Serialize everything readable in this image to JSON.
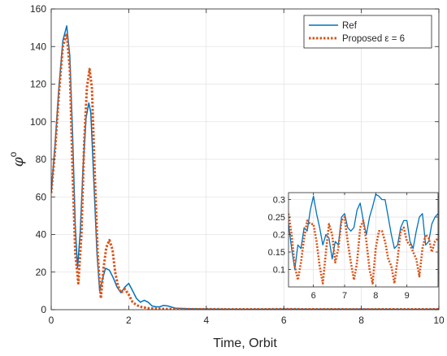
{
  "chart_data": [
    {
      "type": "line",
      "title": "",
      "xlabel": "Time, Orbit",
      "ylabel": "φ",
      "ylabel_superscript": "o",
      "xlim": [
        0,
        10
      ],
      "ylim": [
        0,
        160
      ],
      "xticks": [
        0,
        2,
        4,
        6,
        8,
        10
      ],
      "yticks": [
        0,
        20,
        40,
        60,
        80,
        100,
        120,
        140,
        160
      ],
      "grid": true,
      "legend": {
        "position": "top-right"
      },
      "series": [
        {
          "name": "Ref",
          "color": "#0072BD",
          "style": "solid",
          "x": [
            0,
            0.1,
            0.2,
            0.3,
            0.4,
            0.48,
            0.55,
            0.62,
            0.68,
            0.75,
            0.82,
            0.9,
            0.97,
            1.02,
            1.1,
            1.18,
            1.25,
            1.32,
            1.4,
            1.5,
            1.6,
            1.7,
            1.8,
            1.9,
            2.0,
            2.1,
            2.2,
            2.3,
            2.4,
            2.5,
            2.6,
            2.7,
            2.8,
            2.9,
            3.0,
            3.2,
            3.5,
            4.0,
            5.0,
            6.0,
            7.0,
            8.0,
            9.0,
            10.0
          ],
          "y": [
            62,
            88,
            118,
            143,
            151,
            135,
            95,
            45,
            22,
            42,
            75,
            102,
            110,
            105,
            68,
            30,
            10,
            16,
            22,
            21,
            17,
            12,
            9,
            12,
            14,
            10,
            6,
            4,
            5,
            4,
            2,
            1.5,
            1.5,
            2.3,
            2,
            0.8,
            0.5,
            0.3,
            0.2,
            0.3,
            0.25,
            0.3,
            0.22,
            0.25
          ]
        },
        {
          "name": "Proposed ε = 6",
          "color": "#D95319",
          "style": "dotted",
          "x": [
            0,
            0.1,
            0.2,
            0.3,
            0.4,
            0.48,
            0.55,
            0.62,
            0.7,
            0.78,
            0.85,
            0.92,
            0.99,
            1.05,
            1.12,
            1.2,
            1.28,
            1.35,
            1.42,
            1.5,
            1.58,
            1.65,
            1.72,
            1.8,
            1.9,
            2.0,
            2.1,
            2.2,
            2.3,
            2.5,
            2.7,
            3.0,
            3.5,
            4.0,
            5.0,
            6.0,
            7.0,
            8.0,
            9.0,
            10.0
          ],
          "y": [
            62,
            85,
            115,
            140,
            147,
            128,
            75,
            30,
            14,
            40,
            88,
            118,
            128,
            118,
            75,
            30,
            6,
            22,
            33,
            37,
            32,
            20,
            13,
            9,
            11,
            8,
            4,
            2.5,
            1.5,
            0.8,
            0.5,
            0.35,
            0.3,
            0.25,
            0.2,
            0.25,
            0.2,
            0.18,
            0.2,
            0.2
          ]
        }
      ]
    },
    {
      "type": "line",
      "title": "",
      "xlabel": "",
      "ylabel": "",
      "inset": true,
      "xlim": [
        5.2,
        10
      ],
      "ylim": [
        0.05,
        0.32
      ],
      "xticks": [
        6,
        7,
        8,
        9
      ],
      "yticks": [
        0.1,
        0.15,
        0.2,
        0.25,
        0.3
      ],
      "grid": true,
      "series": [
        {
          "name": "Ref",
          "color": "#0072BD",
          "style": "solid",
          "x": [
            5.2,
            5.3,
            5.4,
            5.5,
            5.6,
            5.7,
            5.8,
            5.9,
            6.0,
            6.1,
            6.2,
            6.3,
            6.4,
            6.5,
            6.6,
            6.7,
            6.8,
            6.9,
            7.0,
            7.1,
            7.2,
            7.3,
            7.4,
            7.5,
            7.6,
            7.7,
            7.8,
            7.9,
            8.0,
            8.1,
            8.2,
            8.3,
            8.4,
            8.5,
            8.6,
            8.7,
            8.8,
            8.9,
            9.0,
            9.1,
            9.2,
            9.3,
            9.4,
            9.5,
            9.6,
            9.7,
            9.8,
            9.9,
            10.0
          ],
          "y": [
            0.23,
            0.16,
            0.1,
            0.17,
            0.16,
            0.22,
            0.21,
            0.27,
            0.31,
            0.26,
            0.22,
            0.17,
            0.2,
            0.19,
            0.13,
            0.18,
            0.17,
            0.25,
            0.26,
            0.22,
            0.21,
            0.22,
            0.27,
            0.29,
            0.24,
            0.2,
            0.25,
            0.28,
            0.315,
            0.31,
            0.3,
            0.3,
            0.25,
            0.2,
            0.16,
            0.17,
            0.22,
            0.24,
            0.24,
            0.18,
            0.16,
            0.21,
            0.25,
            0.26,
            0.17,
            0.18,
            0.23,
            0.25,
            0.26
          ]
        },
        {
          "name": "Proposed ε = 6",
          "color": "#D95319",
          "style": "dotted",
          "x": [
            5.2,
            5.3,
            5.4,
            5.5,
            5.6,
            5.7,
            5.8,
            5.9,
            6.0,
            6.1,
            6.2,
            6.3,
            6.4,
            6.5,
            6.6,
            6.7,
            6.8,
            6.9,
            7.0,
            7.1,
            7.2,
            7.3,
            7.4,
            7.5,
            7.6,
            7.7,
            7.8,
            7.9,
            8.0,
            8.1,
            8.2,
            8.3,
            8.4,
            8.5,
            8.6,
            8.7,
            8.8,
            8.9,
            9.0,
            9.1,
            9.2,
            9.3,
            9.4,
            9.5,
            9.6,
            9.7,
            9.8,
            9.9,
            10.0
          ],
          "y": [
            0.26,
            0.2,
            0.11,
            0.07,
            0.12,
            0.19,
            0.24,
            0.23,
            0.23,
            0.18,
            0.11,
            0.06,
            0.15,
            0.23,
            0.2,
            0.12,
            0.16,
            0.24,
            0.25,
            0.18,
            0.12,
            0.07,
            0.12,
            0.22,
            0.24,
            0.18,
            0.1,
            0.06,
            0.16,
            0.21,
            0.21,
            0.18,
            0.13,
            0.11,
            0.06,
            0.13,
            0.21,
            0.22,
            0.18,
            0.17,
            0.15,
            0.13,
            0.08,
            0.16,
            0.2,
            0.19,
            0.15,
            0.18,
            0.19
          ]
        }
      ]
    }
  ]
}
